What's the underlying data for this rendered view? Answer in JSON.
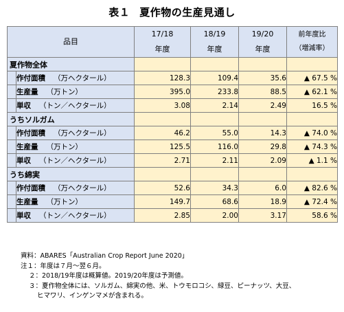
{
  "title": {
    "number": "表１",
    "text": "夏作物の生産見通し"
  },
  "table": {
    "header": {
      "item": "品目",
      "years": [
        {
          "line1": "17/18",
          "line2": "年度"
        },
        {
          "line1": "18/19",
          "line2": "年度"
        },
        {
          "line1": "19/20",
          "line2": "年度"
        }
      ],
      "change_line1": "前年度比",
      "change_line2": "（増減率）"
    },
    "sections": [
      {
        "name": "夏作物全体",
        "rows": [
          {
            "label": "作付面積",
            "unit": "（万ヘクタール）",
            "v1": "128.3",
            "v2": "109.4",
            "v3": "35.6",
            "change": "▲ 67.5 %"
          },
          {
            "label": "生産量",
            "unit": "（万トン）",
            "v1": "395.0",
            "v2": "233.8",
            "v3": "88.5",
            "change": "▲ 62.1 %"
          },
          {
            "label": "単収",
            "unit": "（トン／ヘクタール）",
            "v1": "3.08",
            "v2": "2.14",
            "v3": "2.49",
            "change": "16.5 %"
          }
        ]
      },
      {
        "name": "うちソルガム",
        "rows": [
          {
            "label": "作付面積",
            "unit": "（万ヘクタール）",
            "v1": "46.2",
            "v2": "55.0",
            "v3": "14.3",
            "change": "▲ 74.0 %"
          },
          {
            "label": "生産量",
            "unit": "（万トン）",
            "v1": "125.5",
            "v2": "116.0",
            "v3": "29.8",
            "change": "▲ 74.3 %"
          },
          {
            "label": "単収",
            "unit": "（トン／ヘクタール）",
            "v1": "2.71",
            "v2": "2.11",
            "v3": "2.09",
            "change": "▲ 1.1 %"
          }
        ]
      },
      {
        "name": "うち綿実",
        "rows": [
          {
            "label": "作付面積",
            "unit": "（万ヘクタール）",
            "v1": "52.6",
            "v2": "34.3",
            "v3": "6.0",
            "change": "▲ 82.6 %"
          },
          {
            "label": "生産量",
            "unit": "（万トン）",
            "v1": "149.7",
            "v2": "68.6",
            "v3": "18.9",
            "change": "▲ 72.4 %"
          },
          {
            "label": "単収",
            "unit": "（トン／ヘクタール）",
            "v1": "2.85",
            "v2": "2.00",
            "v3": "3.17",
            "change": "58.6 %"
          }
        ]
      }
    ]
  },
  "notes": {
    "source": "資料：ABARES「Australian Crop Report June 2020」",
    "note1": "注１：年度は７月～翌６月。",
    "note2": "２：2018/19年度は概算値。2019/20年度は予測値。",
    "note3a": "３：夏作物全体には、ソルガム、綿実の他、米、トウモロコシ、緑豆、ピーナッツ、大豆、",
    "note3b": "ヒマワリ、インゲンマメが含まれる。"
  },
  "colors": {
    "header_fill": "#dae3f3",
    "value_fill": "#fff2cc",
    "border": "#7f7f7f"
  }
}
